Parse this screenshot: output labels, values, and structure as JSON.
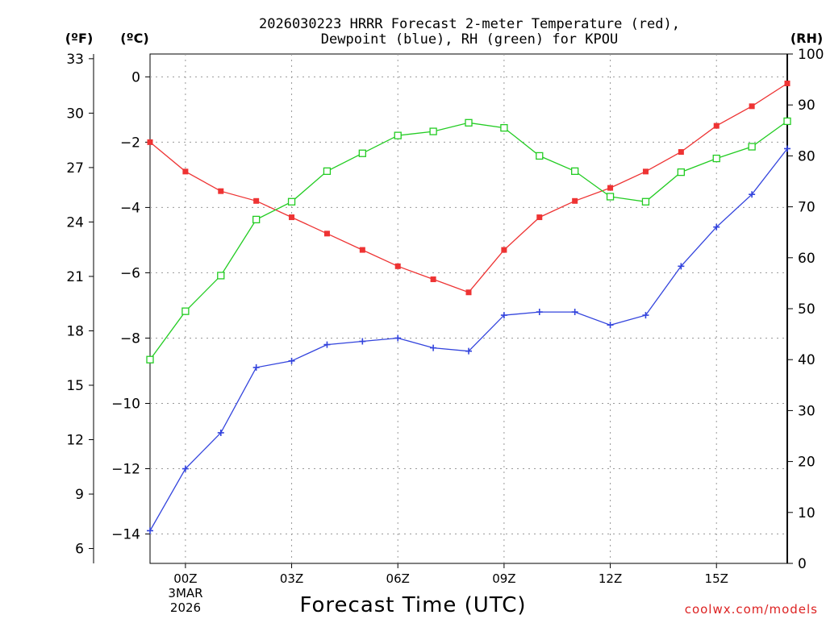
{
  "chart_data": {
    "type": "line",
    "title_line1": "2026030223 HRRR Forecast 2-meter Temperature (red),",
    "title_line2": "Dewpoint (blue), RH (green) for KPOU",
    "xlabel": "Forecast Time (UTC)",
    "x_date_lines": [
      "3MAR",
      "2026"
    ],
    "watermark": "coolwx.com/models",
    "unit_f": "(ºF)",
    "unit_c": "(ºC)",
    "unit_rh": "(RH)",
    "x_hours": [
      -1,
      0,
      1,
      2,
      3,
      4,
      5,
      6,
      7,
      8,
      9,
      10,
      11,
      12,
      13,
      14,
      15,
      16,
      17
    ],
    "xlim": [
      -1,
      17
    ],
    "x_ticks": [
      {
        "hour": 0,
        "label": "00Z"
      },
      {
        "hour": 3,
        "label": "03Z"
      },
      {
        "hour": 6,
        "label": "06Z"
      },
      {
        "hour": 9,
        "label": "09Z"
      },
      {
        "hour": 12,
        "label": "12Z"
      },
      {
        "hour": 15,
        "label": "15Z"
      }
    ],
    "y_celsius": {
      "lim": [
        -14.9,
        0.7
      ],
      "ticks": [
        0,
        -2,
        -4,
        -6,
        -8,
        -10,
        -12,
        -14
      ],
      "tick_labels": [
        "0",
        "−2",
        "−4",
        "−6",
        "−8",
        "−10",
        "−12",
        "−14"
      ]
    },
    "y_fahrenheit": {
      "ticks": [
        33,
        30,
        27,
        24,
        21,
        18,
        15,
        12,
        9,
        6
      ],
      "tick_labels": [
        "33",
        "30",
        "27",
        "24",
        "21",
        "18",
        "15",
        "12",
        "9",
        "6"
      ]
    },
    "y_rh": {
      "lim": [
        0,
        100
      ],
      "ticks": [
        100,
        90,
        80,
        70,
        60,
        50,
        40,
        30,
        20,
        10,
        0
      ],
      "tick_labels": [
        "100",
        "90",
        "80",
        "70",
        "60",
        "50",
        "40",
        "30",
        "20",
        "10",
        "0"
      ]
    },
    "series": [
      {
        "name": "Temperature",
        "axis": "celsius",
        "color": "#ee3333",
        "marker": "filled-square",
        "values": [
          -2.0,
          -2.9,
          -3.5,
          -3.8,
          -4.3,
          -4.8,
          -5.3,
          -5.8,
          -6.2,
          -6.6,
          -5.3,
          -4.3,
          -3.8,
          -3.4,
          -2.9,
          -2.3,
          -1.5,
          -0.9,
          -0.2
        ]
      },
      {
        "name": "Dewpoint",
        "axis": "celsius",
        "color": "#3344dd",
        "marker": "plus",
        "values": [
          -13.9,
          -12.0,
          -10.9,
          -8.9,
          -8.7,
          -8.2,
          -8.1,
          -8.0,
          -8.3,
          -8.4,
          -7.3,
          -7.2,
          -7.2,
          -7.6,
          -7.3,
          -5.8,
          -4.6,
          -3.6,
          -2.2
        ]
      },
      {
        "name": "RH",
        "axis": "rh",
        "color": "#22cc22",
        "marker": "open-square",
        "values": [
          40,
          49.5,
          56.5,
          67.5,
          71,
          77,
          80.5,
          84,
          84.8,
          86.5,
          85.5,
          80,
          77,
          72,
          71,
          76.8,
          79.5,
          81.8,
          86.8
        ]
      }
    ]
  }
}
